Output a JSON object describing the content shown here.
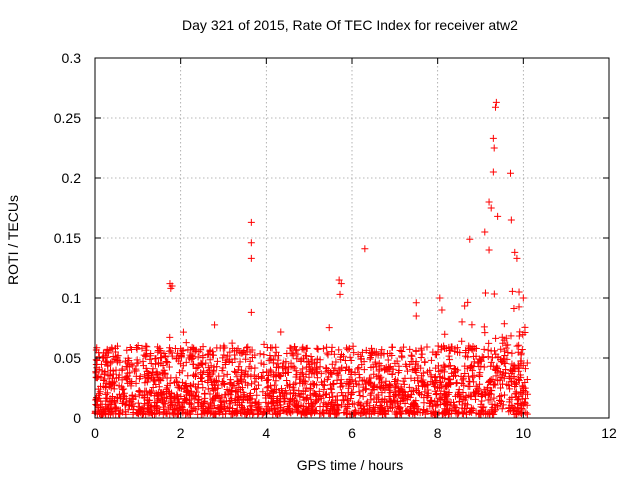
{
  "chart_data": {
    "type": "scatter",
    "title": "Day 321 of 2015, Rate Of TEC Index for receiver atw2",
    "xlabel": "GPS time / hours",
    "ylabel": "ROTI / TECUs",
    "xlim": [
      0,
      12
    ],
    "ylim": [
      0,
      0.3
    ],
    "x_ticks": [
      0,
      2,
      4,
      6,
      8,
      10,
      12
    ],
    "y_ticks": [
      0,
      0.05,
      0.1,
      0.15,
      0.2,
      0.25,
      0.3
    ],
    "x_tick_labels": [
      "0",
      "2",
      "4",
      "6",
      "8",
      "10",
      "12"
    ],
    "y_tick_labels": [
      "0",
      "0.05",
      "0.1",
      "0.15",
      "0.2",
      "0.25",
      "0.3"
    ],
    "grid": true,
    "marker": "+",
    "series_color": "#ff0000",
    "points": [
      {
        "x": 1.75,
        "y": 0.112
      },
      {
        "x": 1.77,
        "y": 0.108
      },
      {
        "x": 1.8,
        "y": 0.11
      },
      {
        "x": 3.65,
        "y": 0.163
      },
      {
        "x": 3.65,
        "y": 0.146
      },
      {
        "x": 3.65,
        "y": 0.133
      },
      {
        "x": 3.65,
        "y": 0.088
      },
      {
        "x": 5.7,
        "y": 0.115
      },
      {
        "x": 5.72,
        "y": 0.103
      },
      {
        "x": 5.75,
        "y": 0.112
      },
      {
        "x": 6.3,
        "y": 0.141
      },
      {
        "x": 7.5,
        "y": 0.096
      },
      {
        "x": 7.5,
        "y": 0.085
      },
      {
        "x": 8.05,
        "y": 0.1
      },
      {
        "x": 8.1,
        "y": 0.09
      },
      {
        "x": 8.75,
        "y": 0.149
      },
      {
        "x": 9.1,
        "y": 0.155
      },
      {
        "x": 9.2,
        "y": 0.14
      },
      {
        "x": 9.2,
        "y": 0.18
      },
      {
        "x": 9.25,
        "y": 0.175
      },
      {
        "x": 9.3,
        "y": 0.205
      },
      {
        "x": 9.3,
        "y": 0.233
      },
      {
        "x": 9.32,
        "y": 0.225
      },
      {
        "x": 9.35,
        "y": 0.259
      },
      {
        "x": 9.37,
        "y": 0.263
      },
      {
        "x": 9.4,
        "y": 0.168
      },
      {
        "x": 9.7,
        "y": 0.204
      },
      {
        "x": 9.72,
        "y": 0.165
      },
      {
        "x": 9.8,
        "y": 0.138
      },
      {
        "x": 9.85,
        "y": 0.133
      },
      {
        "x": 9.9,
        "y": 0.105
      },
      {
        "x": 10.0,
        "y": 0.1
      }
    ],
    "point_generation": {
      "description": "Dense noisy baseline of '+' markers from 0 to 10.1 h, mostly between 0.003 and 0.06 TECU, with stronger scatter after 8.5 h",
      "x_range": [
        0,
        10.1
      ],
      "baseline_min": 0.003,
      "baseline_max": 0.06,
      "count": 2200,
      "seed": 321
    }
  }
}
